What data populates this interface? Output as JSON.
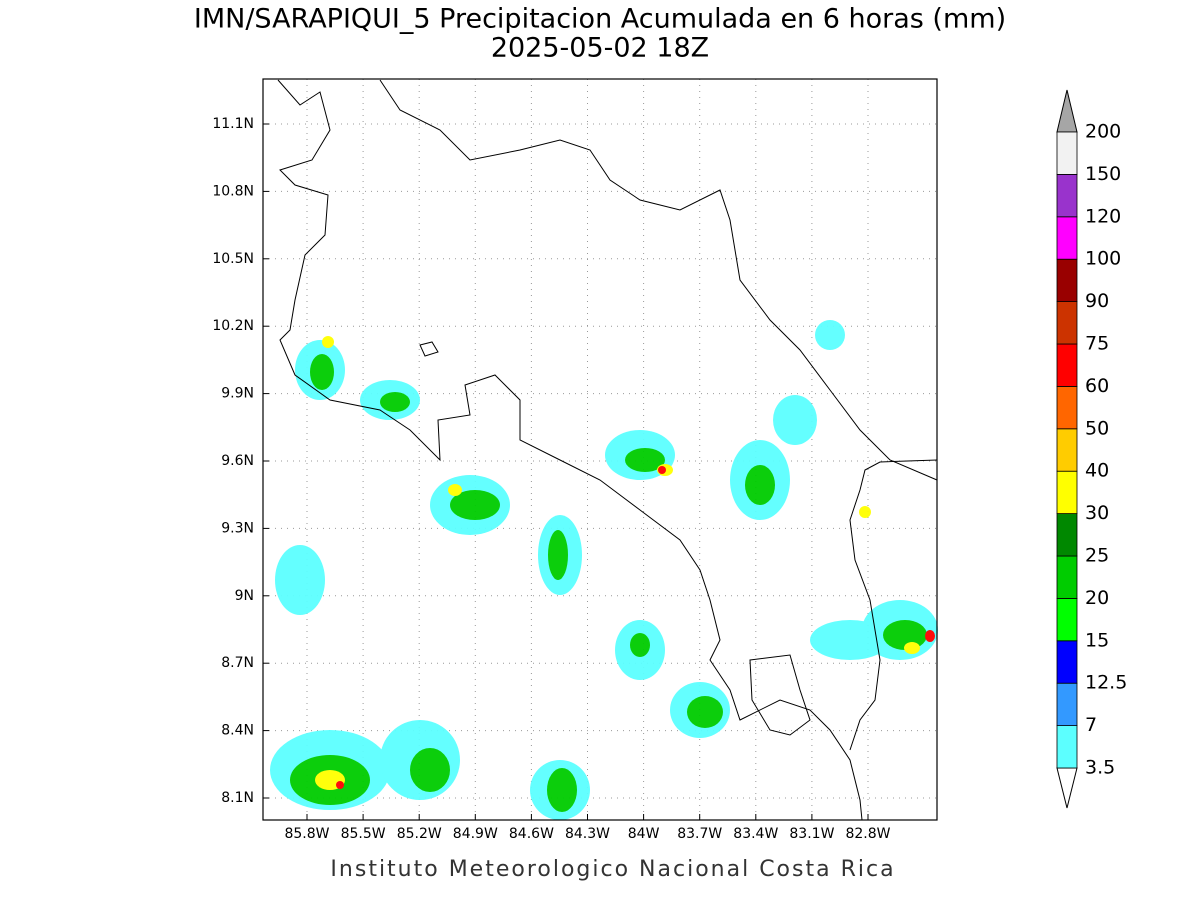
{
  "title": "IMN/SARAPIQUI_5 Precipitacion Acumulada en 6 horas (mm)",
  "subtitle": "2025-05-02 18Z",
  "map": {
    "lon_ticks": [
      "85.8W",
      "85.5W",
      "85.2W",
      "84.9W",
      "84.6W",
      "84.3W",
      "84W",
      "83.7W",
      "83.4W",
      "83.1W",
      "82.8W"
    ],
    "lat_ticks": [
      "11.1N",
      "10.8N",
      "10.5N",
      "10.2N",
      "9.9N",
      "9.6N",
      "9.3N",
      "9N",
      "8.7N",
      "8.4N",
      "8.1N"
    ]
  },
  "colorbar": {
    "levels": [
      "3.5",
      "7",
      "12.5",
      "15",
      "20",
      "25",
      "30",
      "40",
      "50",
      "60",
      "75",
      "90",
      "100",
      "120",
      "150",
      "200"
    ],
    "under_color": "#ffffff",
    "segment_colors": [
      "#5cffff",
      "#3399ff",
      "#0000ff",
      "#00ff00",
      "#00cc00",
      "#008800",
      "#ffff00",
      "#ffcc00",
      "#ff6600",
      "#ff0000",
      "#cc3300",
      "#990000",
      "#ff00ff",
      "#9933cc",
      "#f2f2f2"
    ],
    "over_color": "#a6a6a6"
  },
  "footer": "Instituto Meteorologico Nacional Costa Rica"
}
